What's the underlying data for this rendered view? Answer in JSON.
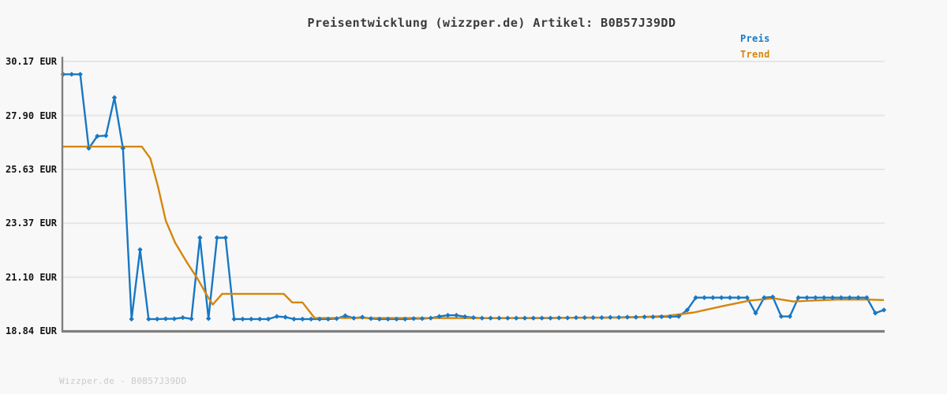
{
  "page": {
    "title": "Preisentwicklung (wizzper.de) Artikel: B0B57J39DD",
    "footer": "Wizzper.de - B0B57J39DD",
    "background_color": "#f8f8f8"
  },
  "legend": {
    "items": [
      {
        "label": "Preis",
        "color": "#1878c4"
      },
      {
        "label": "Trend",
        "color": "#d5860d"
      }
    ]
  },
  "colors": {
    "price_line": "#1878c4",
    "trend_line": "#d5860d",
    "gridline": "#e6e6e6",
    "axis": "#7f7f7f",
    "title_text": "#3a3a3a",
    "tick_text": "#141414",
    "footer_text": "#cacaca"
  },
  "chart_data": {
    "type": "line",
    "title": "Preisentwicklung (wizzper.de) Artikel: B0B57J39DD",
    "currency": "EUR",
    "xlabel": "",
    "ylabel": "",
    "x_tick_labels": [],
    "y_tick_labels": [
      "30.17 EUR",
      "27.90 EUR",
      "25.63 EUR",
      "23.37 EUR",
      "21.10 EUR",
      "18.84 EUR"
    ],
    "y_tick_values": [
      30.17,
      27.9,
      25.63,
      23.37,
      21.1,
      18.84
    ],
    "ylim": [
      18.84,
      30.17
    ],
    "x_index_range": [
      0,
      96
    ],
    "grid": "horizontal",
    "legend_position": "top-right",
    "series": [
      {
        "name": "Preis",
        "style": "line-with-markers",
        "values": [
          29.63,
          29.63,
          29.63,
          26.52,
          27.03,
          27.05,
          28.65,
          26.52,
          19.34,
          22.26,
          19.34,
          19.34,
          19.35,
          19.35,
          19.4,
          19.35,
          22.76,
          19.36,
          22.76,
          22.76,
          19.34,
          19.34,
          19.34,
          19.34,
          19.34,
          19.45,
          19.42,
          19.34,
          19.34,
          19.34,
          19.34,
          19.34,
          19.36,
          19.48,
          19.38,
          19.42,
          19.36,
          19.34,
          19.34,
          19.34,
          19.34,
          19.36,
          19.36,
          19.38,
          19.45,
          19.5,
          19.5,
          19.44,
          19.4,
          19.38,
          19.38,
          19.38,
          19.38,
          19.38,
          19.38,
          19.38,
          19.38,
          19.38,
          19.39,
          19.39,
          19.4,
          19.4,
          19.4,
          19.4,
          19.41,
          19.41,
          19.42,
          19.42,
          19.43,
          19.43,
          19.44,
          19.44,
          19.45,
          19.72,
          20.24,
          20.24,
          20.24,
          20.24,
          20.24,
          20.24,
          20.24,
          19.59,
          20.24,
          20.27,
          19.45,
          19.45,
          20.24,
          20.24,
          20.24,
          20.24,
          20.24,
          20.24,
          20.24,
          20.24,
          20.24,
          19.59,
          19.72
        ]
      },
      {
        "name": "Trend",
        "style": "line",
        "points": [
          [
            0,
            26.59
          ],
          [
            9.2,
            26.59
          ],
          [
            10.2,
            26.1
          ],
          [
            11.1,
            24.9
          ],
          [
            12,
            23.48
          ],
          [
            13.1,
            22.55
          ],
          [
            14.5,
            21.71
          ],
          [
            15.7,
            21.05
          ],
          [
            16.8,
            20.35
          ],
          [
            17.5,
            19.95
          ],
          [
            18.6,
            20.4
          ],
          [
            25.8,
            20.4
          ],
          [
            26.8,
            20.04
          ],
          [
            28.0,
            20.04
          ],
          [
            29.4,
            19.39
          ],
          [
            48,
            19.38
          ],
          [
            65.5,
            19.4
          ],
          [
            70.6,
            19.47
          ],
          [
            73.8,
            19.62
          ],
          [
            77.1,
            19.88
          ],
          [
            80.3,
            20.12
          ],
          [
            83.1,
            20.21
          ],
          [
            85.4,
            20.08
          ],
          [
            87.7,
            20.12
          ],
          [
            90.5,
            20.16
          ],
          [
            94.2,
            20.16
          ],
          [
            96,
            20.14
          ]
        ]
      }
    ]
  }
}
